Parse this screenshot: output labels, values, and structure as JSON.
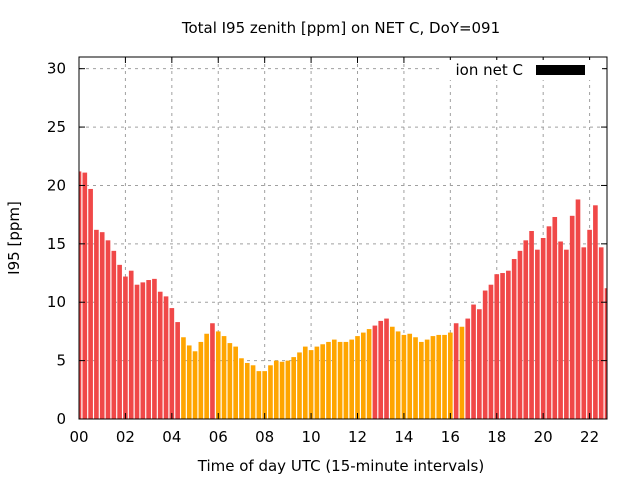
{
  "chart_data": {
    "type": "bar",
    "title": "Total I95 zenith [ppm] on NET C, DoY=091",
    "xlabel": "Time of day UTC (15-minute intervals)",
    "ylabel": "I95 [ppm]",
    "xlim": [
      0,
      22.75
    ],
    "ylim": [
      0,
      31
    ],
    "grid": true,
    "legend": {
      "label": "ion net C",
      "position": "top-right",
      "color": "#000000"
    },
    "x_ticks": [
      0,
      2,
      4,
      6,
      8,
      10,
      12,
      14,
      16,
      18,
      20,
      22
    ],
    "x_tick_labels": [
      "00",
      "02",
      "04",
      "06",
      "08",
      "10",
      "12",
      "14",
      "16",
      "18",
      "20",
      "22"
    ],
    "y_ticks": [
      0,
      5,
      10,
      15,
      20,
      25,
      30
    ],
    "y_tick_labels": [
      "0",
      "5",
      "10",
      "15",
      "20",
      "25",
      "30"
    ],
    "interval_hours": 0.25,
    "threshold": 8,
    "colors": {
      "above_threshold": "#f04848",
      "below_threshold": "#ffa500"
    },
    "values": [
      21.2,
      21.1,
      19.7,
      16.2,
      16.0,
      15.3,
      14.4,
      13.2,
      12.2,
      12.7,
      11.5,
      11.7,
      11.9,
      12.0,
      10.9,
      10.5,
      9.5,
      8.3,
      7.0,
      6.3,
      5.8,
      6.6,
      7.3,
      8.2,
      7.5,
      7.1,
      6.5,
      6.2,
      5.2,
      4.8,
      4.6,
      4.1,
      4.1,
      4.6,
      5.0,
      4.9,
      5.0,
      5.3,
      5.7,
      6.2,
      5.9,
      6.2,
      6.4,
      6.6,
      6.8,
      6.6,
      6.6,
      6.8,
      7.1,
      7.4,
      7.7,
      8.0,
      8.4,
      8.6,
      7.9,
      7.5,
      7.2,
      7.3,
      7.0,
      6.6,
      6.8,
      7.1,
      7.2,
      7.2,
      7.4,
      8.2,
      7.9,
      8.6,
      9.8,
      9.4,
      11.0,
      11.5,
      12.4,
      12.5,
      12.7,
      13.7,
      14.4,
      15.3,
      16.1,
      14.5,
      15.5,
      16.5,
      17.3,
      15.2,
      14.5,
      17.4,
      18.8,
      14.7,
      16.2,
      18.3,
      14.7,
      11.2
    ]
  }
}
